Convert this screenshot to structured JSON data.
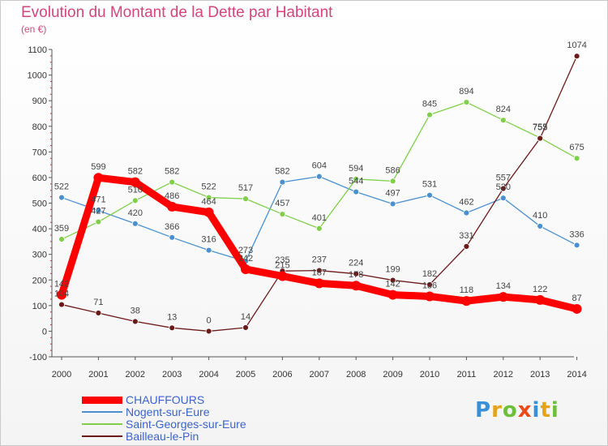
{
  "title": "Evolution du Montant de la Dette par Habitant",
  "subtitle": "(en €)",
  "logo": "Proxiti",
  "chart_data": {
    "type": "line",
    "title": "Evolution du Montant de la Dette par Habitant",
    "ylabel": "(en €)",
    "xlabel": "",
    "x": [
      "2000",
      "2001",
      "2002",
      "2003",
      "2004",
      "2005",
      "2006",
      "2007",
      "2008",
      "2009",
      "2010",
      "2011",
      "2012",
      "2013",
      "2014"
    ],
    "ylim": [
      -100,
      1100
    ],
    "yticks": [
      -100,
      0,
      100,
      200,
      300,
      400,
      500,
      600,
      700,
      800,
      900,
      1000,
      1100
    ],
    "grid": false,
    "legend_position": "bottom-left",
    "series": [
      {
        "name": "CHAUFFOURS",
        "color": "#ff0000",
        "values": [
          142,
          599,
          582,
          486,
          464,
          242,
          215,
          187,
          178,
          142,
          136,
          118,
          134,
          122,
          87
        ]
      },
      {
        "name": "Nogent-sur-Eure",
        "color": "#4a90d0",
        "values": [
          522,
          471,
          420,
          366,
          316,
          273,
          582,
          604,
          544,
          497,
          531,
          462,
          520,
          410,
          336
        ]
      },
      {
        "name": "Saint-Georges-sur-Eure",
        "color": "#7fcf4a",
        "values": [
          359,
          427,
          510,
          582,
          522,
          517,
          457,
          401,
          594,
          586,
          845,
          894,
          824,
          755,
          675
        ]
      },
      {
        "name": "Bailleau-le-Pin",
        "color": "#6b1a1a",
        "values": [
          104,
          71,
          38,
          13,
          0,
          14,
          235,
          237,
          224,
          199,
          182,
          331,
          557,
          753,
          1074
        ]
      }
    ]
  }
}
